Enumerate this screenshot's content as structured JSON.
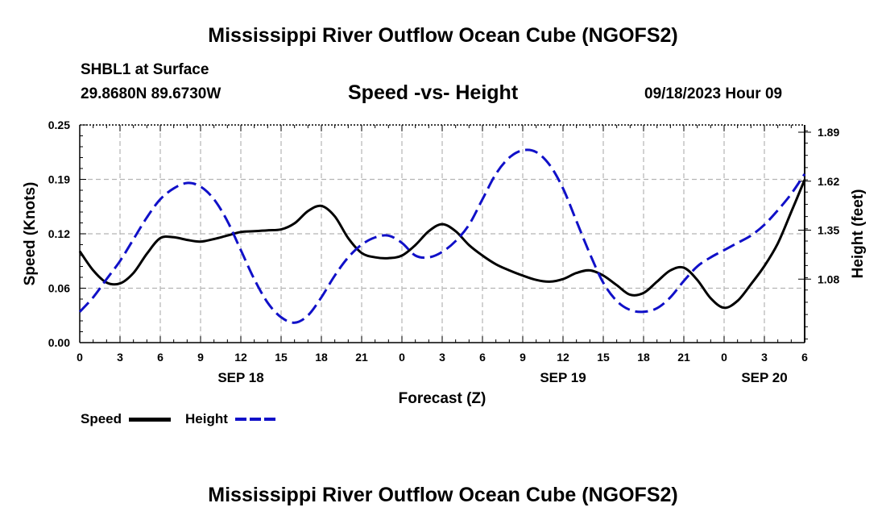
{
  "header": {
    "title": "Mississippi River Outflow Ocean Cube (NGOFS2)",
    "station": "SHBL1 at Surface",
    "coords": "29.8680N  89.6730W",
    "subtitle": "Speed -vs- Height",
    "datetime": "09/18/2023 Hour 09",
    "footer_title": "Mississippi River Outflow Ocean Cube (NGOFS2)"
  },
  "legend": {
    "speed_label": "Speed",
    "height_label": "Height"
  },
  "colors": {
    "speed": "#000000",
    "height": "#1010c8",
    "grid": "#b4b4b4"
  },
  "chart_data": {
    "type": "line",
    "title": "Speed -vs- Height",
    "xlabel": "Forecast (Z)",
    "ylabel": "Speed (Knots)",
    "y2label": "Height (feet)",
    "ylim": [
      0,
      0.25
    ],
    "y2lim": [
      0.73,
      1.93
    ],
    "xlim": [
      0,
      54
    ],
    "x_ticks": [
      0,
      3,
      6,
      9,
      12,
      15,
      18,
      21,
      24,
      27,
      30,
      33,
      36,
      39,
      42,
      45,
      48,
      51,
      54
    ],
    "x_tick_labels": [
      "0",
      "3",
      "6",
      "9",
      "12",
      "15",
      "18",
      "21",
      "0",
      "3",
      "6",
      "9",
      "12",
      "15",
      "18",
      "21",
      "0",
      "3",
      "6"
    ],
    "date_labels": [
      {
        "x": 12,
        "label": "SEP 18"
      },
      {
        "x": 36,
        "label": "SEP 19"
      },
      {
        "x": 51,
        "label": "SEP 20"
      }
    ],
    "y_ticks": [
      "0.00",
      "0.06",
      "0.12",
      "0.19",
      "0.25"
    ],
    "y2_ticks": [
      "1.08",
      "1.35",
      "1.62",
      "1.89"
    ],
    "grid": true,
    "series": [
      {
        "name": "Speed",
        "axis": "left",
        "style": "solid",
        "x": [
          0,
          1,
          2,
          3,
          4,
          5,
          6,
          7,
          8,
          9,
          10,
          11,
          12,
          13,
          14,
          15,
          16,
          17,
          18,
          19,
          20,
          21,
          22,
          23,
          24,
          25,
          26,
          27,
          28,
          29,
          30,
          31,
          32,
          33,
          34,
          35,
          36,
          37,
          38,
          39,
          40,
          41,
          42,
          43,
          44,
          45,
          46,
          47,
          48,
          49,
          50,
          51,
          52,
          53,
          54
        ],
        "values": [
          0.105,
          0.083,
          0.069,
          0.068,
          0.08,
          0.102,
          0.12,
          0.121,
          0.118,
          0.116,
          0.119,
          0.123,
          0.127,
          0.128,
          0.129,
          0.13,
          0.137,
          0.151,
          0.157,
          0.145,
          0.12,
          0.103,
          0.098,
          0.097,
          0.1,
          0.112,
          0.128,
          0.136,
          0.128,
          0.112,
          0.1,
          0.09,
          0.083,
          0.077,
          0.072,
          0.07,
          0.073,
          0.08,
          0.083,
          0.077,
          0.066,
          0.055,
          0.057,
          0.07,
          0.083,
          0.086,
          0.072,
          0.051,
          0.04,
          0.048,
          0.067,
          0.088,
          0.114,
          0.15,
          0.187
        ]
      },
      {
        "name": "Height",
        "axis": "right",
        "style": "dashed",
        "x": [
          0,
          1,
          2,
          3,
          4,
          5,
          6,
          7,
          8,
          9,
          10,
          11,
          12,
          13,
          14,
          15,
          16,
          17,
          18,
          19,
          20,
          21,
          22,
          23,
          24,
          25,
          26,
          27,
          28,
          29,
          30,
          31,
          32,
          33,
          34,
          35,
          36,
          37,
          38,
          39,
          40,
          41,
          42,
          43,
          44,
          45,
          46,
          47,
          48,
          49,
          50,
          51,
          52,
          53,
          54
        ],
        "values": [
          0.9,
          0.98,
          1.08,
          1.18,
          1.3,
          1.42,
          1.52,
          1.58,
          1.61,
          1.59,
          1.52,
          1.4,
          1.24,
          1.08,
          0.95,
          0.87,
          0.84,
          0.88,
          0.98,
          1.1,
          1.2,
          1.27,
          1.31,
          1.32,
          1.28,
          1.21,
          1.2,
          1.23,
          1.29,
          1.38,
          1.52,
          1.66,
          1.75,
          1.79,
          1.78,
          1.71,
          1.58,
          1.4,
          1.22,
          1.06,
          0.96,
          0.91,
          0.9,
          0.92,
          0.98,
          1.07,
          1.15,
          1.2,
          1.24,
          1.28,
          1.32,
          1.38,
          1.46,
          1.55,
          1.66
        ]
      }
    ]
  }
}
